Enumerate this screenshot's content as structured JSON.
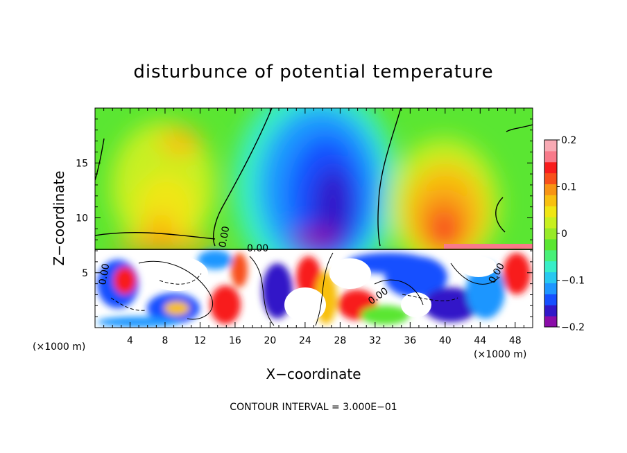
{
  "chart_data": {
    "type": "heatmap",
    "title": "disturbunce of potential temperature",
    "xlabel": "X−coordinate",
    "ylabel": "Z−coordinate",
    "x_unit": "(×1000 m)",
    "z_unit": "(×1000 m)",
    "xlim": [
      0,
      50
    ],
    "ylim": [
      0,
      20
    ],
    "x_ticks": [
      "4",
      "8",
      "12",
      "16",
      "20",
      "24",
      "28",
      "32",
      "36",
      "40",
      "44",
      "48"
    ],
    "y_ticks": [
      "5",
      "10",
      "15"
    ],
    "colorbar": {
      "range": [
        -0.2,
        0.2
      ],
      "tick_labels": [
        "0.2",
        "0.1",
        "0",
        "−0.1",
        "−0.2"
      ],
      "colors": [
        "#8a0ca8",
        "#3218c8",
        "#1650ff",
        "#1e96ff",
        "#28c8f0",
        "#38eec8",
        "#48f078",
        "#5ae632",
        "#98ea28",
        "#c8f020",
        "#f0e614",
        "#f8c010",
        "#f89414",
        "#f8501a",
        "#f81c1c",
        "#f87a8a",
        "#f8aab4"
      ]
    },
    "contour_labels": [
      "0.00",
      "0.00",
      "0.00",
      "0.00",
      "0.00"
    ],
    "contour_interval_text": "CONTOUR INTERVAL = 3.000E−01"
  }
}
